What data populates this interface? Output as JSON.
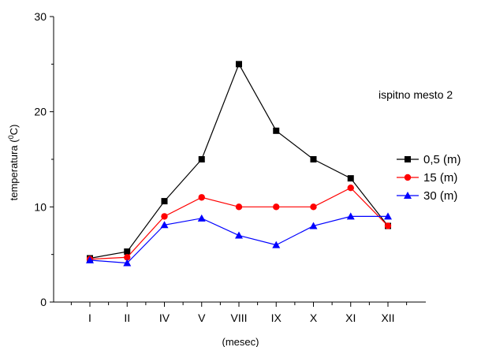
{
  "chart_data": {
    "type": "line",
    "title": "",
    "annotation": "ispitno mesto 2",
    "xlabel": "(mesec)",
    "ylabel": "temperatura (",
    "ylabel_sup": "0",
    "ylabel_suffix": "C)",
    "categories": [
      "I",
      "II",
      "IV",
      "V",
      "VIII",
      "IX",
      "X",
      "XI",
      "XII"
    ],
    "ylim": [
      0,
      30
    ],
    "yticks": [
      0,
      10,
      20,
      30
    ],
    "grid": false,
    "legend_position": "right",
    "series": [
      {
        "name": "0,5 (m)",
        "color": "#000000",
        "marker": "square",
        "values": [
          4.6,
          5.3,
          10.6,
          15.0,
          25.0,
          18.0,
          15.0,
          13.0,
          8.0
        ]
      },
      {
        "name": "15 (m)",
        "color": "#ff0000",
        "marker": "circle",
        "values": [
          4.5,
          4.7,
          9.0,
          11.0,
          10.0,
          10.0,
          10.0,
          12.0,
          8.0
        ]
      },
      {
        "name": "30 (m)",
        "color": "#0000ff",
        "marker": "triangle",
        "values": [
          4.4,
          4.1,
          8.1,
          8.8,
          7.0,
          6.0,
          8.0,
          9.0,
          9.0
        ]
      }
    ]
  }
}
